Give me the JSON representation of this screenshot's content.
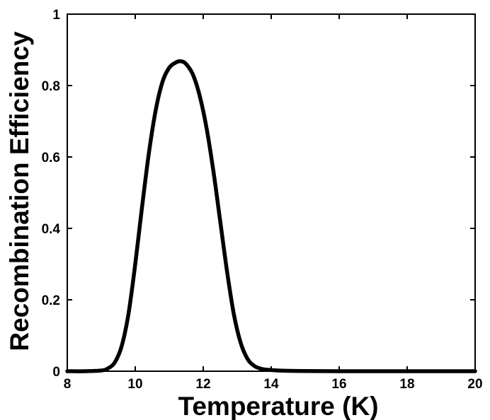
{
  "chart_data": {
    "type": "line",
    "title": "",
    "xlabel": "Temperature (K)",
    "ylabel": "Recombination Efficiency",
    "xlim": [
      8,
      20
    ],
    "ylim": [
      0,
      1
    ],
    "xticks": [
      8,
      10,
      12,
      14,
      16,
      18,
      20
    ],
    "yticks": [
      0,
      0.2,
      0.4,
      0.6,
      0.8,
      1
    ],
    "xtick_labels": [
      "8",
      "10",
      "12",
      "14",
      "16",
      "18",
      "20"
    ],
    "ytick_labels": [
      "0",
      "0.2",
      "0.4",
      "0.6",
      "0.8",
      "1"
    ],
    "grid": false,
    "legend": "none",
    "series": [
      {
        "color": "#000000",
        "x": [
          8.0,
          8.5,
          9.0,
          9.2,
          9.4,
          9.6,
          9.8,
          10.0,
          10.2,
          10.4,
          10.6,
          10.8,
          11.0,
          11.2,
          11.35,
          11.5,
          11.7,
          11.9,
          12.1,
          12.3,
          12.5,
          12.7,
          12.9,
          13.1,
          13.3,
          13.5,
          13.7,
          13.9,
          14.2,
          14.6,
          15.0,
          16.0,
          18.0,
          20.0
        ],
        "y": [
          0.0,
          0.0,
          0.002,
          0.008,
          0.025,
          0.07,
          0.16,
          0.3,
          0.46,
          0.61,
          0.73,
          0.81,
          0.85,
          0.865,
          0.868,
          0.86,
          0.83,
          0.77,
          0.68,
          0.56,
          0.42,
          0.28,
          0.16,
          0.08,
          0.035,
          0.015,
          0.007,
          0.004,
          0.002,
          0.001,
          0.0005,
          0.0,
          0.0,
          0.0
        ]
      }
    ]
  }
}
